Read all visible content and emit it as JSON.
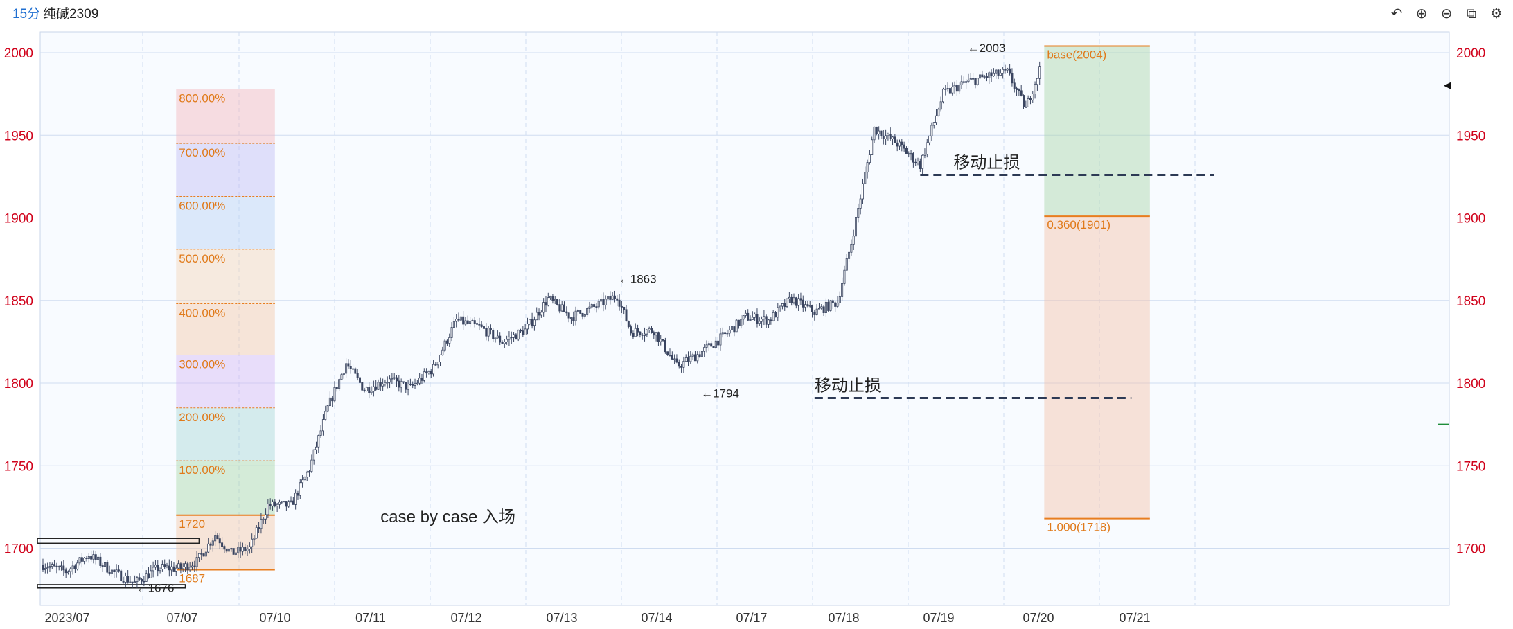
{
  "header": {
    "period": "15分",
    "symbol": "纯碱2309"
  },
  "toolbar": [
    {
      "name": "undo-icon",
      "glyph": "↶"
    },
    {
      "name": "zoom-in-icon",
      "glyph": "⊕"
    },
    {
      "name": "zoom-out-icon",
      "glyph": "⊖"
    },
    {
      "name": "window-icon",
      "glyph": "⧉"
    },
    {
      "name": "settings-icon",
      "glyph": "⚙"
    }
  ],
  "colors": {
    "grid": "#cfdcf0",
    "axis_text": "#d0021b",
    "candle": "#3a4560",
    "fib_line": "#e87d1f",
    "fib_text": "#e07a1a",
    "stop_line": "#2d3a55"
  },
  "chart_data": {
    "type": "candlestick",
    "x_labels": [
      "2023/07",
      "07/07",
      "07/10",
      "07/11",
      "07/12",
      "07/13",
      "07/14",
      "07/17",
      "07/18",
      "07/19",
      "07/20",
      "07/21"
    ],
    "y_ticks": [
      1700,
      1750,
      1800,
      1850,
      1900,
      1950,
      2000
    ],
    "ylim": [
      1665,
      2015
    ],
    "grid": true,
    "path_points": [
      [
        0,
        1690
      ],
      [
        10,
        1686
      ],
      [
        20,
        1696
      ],
      [
        30,
        1686
      ],
      [
        40,
        1679
      ],
      [
        50,
        1688
      ],
      [
        60,
        1688
      ],
      [
        67,
        1692
      ],
      [
        75,
        1708
      ],
      [
        82,
        1697
      ],
      [
        90,
        1700
      ],
      [
        98,
        1726
      ],
      [
        108,
        1726
      ],
      [
        116,
        1748
      ],
      [
        124,
        1785
      ],
      [
        132,
        1812
      ],
      [
        140,
        1796
      ],
      [
        150,
        1802
      ],
      [
        160,
        1797
      ],
      [
        170,
        1809
      ],
      [
        180,
        1838
      ],
      [
        190,
        1834
      ],
      [
        200,
        1825
      ],
      [
        210,
        1832
      ],
      [
        220,
        1851
      ],
      [
        230,
        1840
      ],
      [
        240,
        1846
      ],
      [
        250,
        1853
      ],
      [
        256,
        1831
      ],
      [
        266,
        1832
      ],
      [
        276,
        1810
      ],
      [
        286,
        1818
      ],
      [
        296,
        1828
      ],
      [
        306,
        1840
      ],
      [
        316,
        1838
      ],
      [
        326,
        1851
      ],
      [
        336,
        1843
      ],
      [
        346,
        1849
      ],
      [
        352,
        1885
      ],
      [
        362,
        1954
      ],
      [
        372,
        1945
      ],
      [
        382,
        1932
      ],
      [
        392,
        1975
      ],
      [
        402,
        1982
      ],
      [
        412,
        1986
      ],
      [
        420,
        1988
      ],
      [
        428,
        1966
      ],
      [
        434,
        1990
      ]
    ],
    "annotations": [
      {
        "text": "←1676",
        "x": 40,
        "y": 1676
      },
      {
        "text": "←1863",
        "x": 250,
        "y": 1863
      },
      {
        "text": "←1794",
        "x": 286,
        "y": 1794
      },
      {
        "text": "←2003",
        "x": 402,
        "y": 2003
      }
    ],
    "left_fib": {
      "x_range": [
        58,
        101
      ],
      "base": 1720,
      "base_label": "1720",
      "low": 1687,
      "low_label": "1687",
      "levels": [
        {
          "label": "100.00%",
          "value": 1753
        },
        {
          "label": "200.00%",
          "value": 1785
        },
        {
          "label": "300.00%",
          "value": 1817
        },
        {
          "label": "400.00%",
          "value": 1848
        },
        {
          "label": "500.00%",
          "value": 1881
        },
        {
          "label": "600.00%",
          "value": 1913
        },
        {
          "label": "700.00%",
          "value": 1945
        },
        {
          "label": "800.00%",
          "value": 1978
        }
      ],
      "band_colors": [
        "#f5c7a8",
        "#a9d8a9",
        "#a8d8d8",
        "#d4b8f5",
        "#f5c7a8",
        "#f5d5b8",
        "#b8d0f5",
        "#c0bdf5",
        "#f5b5bd"
      ]
    },
    "right_fib": {
      "x_range": [
        436,
        482
      ],
      "levels": [
        {
          "label": "base(2004)",
          "value": 2004
        },
        {
          "label": "0.360(1901)",
          "value": 1901
        },
        {
          "label": "1.000(1718)",
          "value": 1718
        }
      ],
      "upper_color": "#a9d4a9",
      "lower_color": "#f5c2a8"
    },
    "boxes": [
      {
        "x_range": [
          0,
          68
        ],
        "y_range": [
          1703,
          1706
        ]
      },
      {
        "x_range": [
          0,
          62
        ],
        "y_range": [
          1676,
          1678
        ]
      }
    ],
    "stop_lines": [
      {
        "label": "移动止损",
        "x_range": [
          382,
          510
        ],
        "value": 1926
      },
      {
        "label": "移动止损",
        "x_range": [
          336,
          474
        ],
        "value": 1791
      }
    ],
    "free_text": [
      {
        "text": "case by case 入场",
        "x": 112,
        "y": 1720
      }
    ],
    "side_markers": [
      {
        "value": 1980,
        "color": "#111111",
        "shape": "arrow"
      },
      {
        "value": 1775,
        "color": "#1e8c3a",
        "shape": "tick"
      }
    ]
  }
}
